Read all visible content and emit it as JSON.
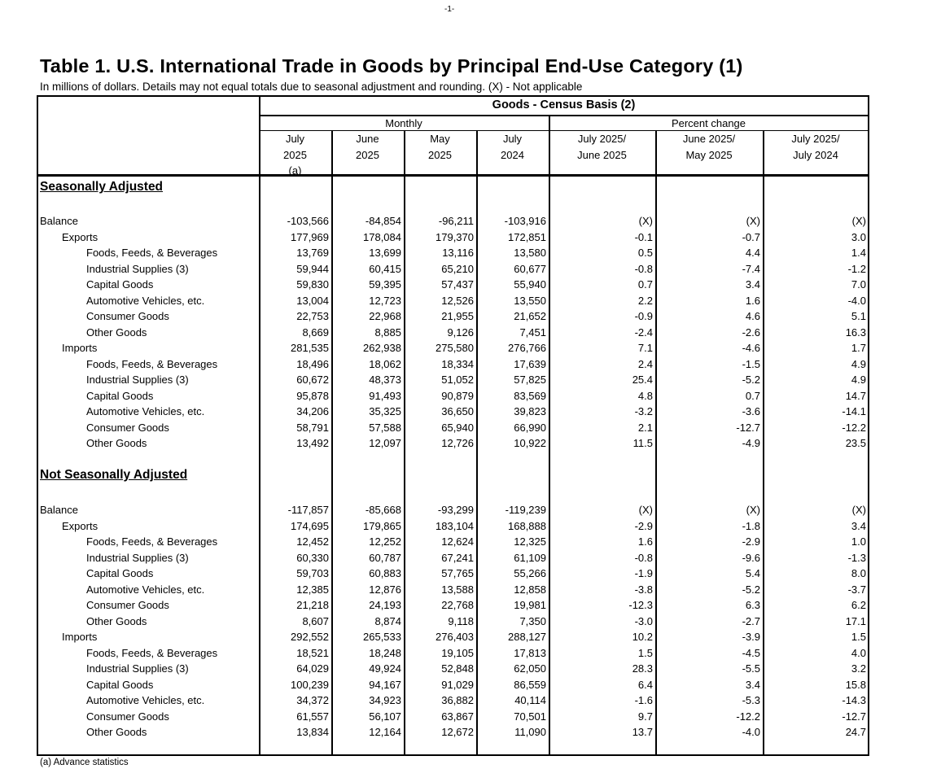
{
  "page_number": "-1-",
  "title": "Table 1. U.S. International Trade in Goods by Principal End-Use Category (1)",
  "subtitle": "In millions of dollars. Details may not equal totals due to seasonal adjustment and rounding. (X) - Not applicable",
  "header": {
    "group": "Goods - Census Basis (2)",
    "monthly": "Monthly",
    "percent_change": "Percent change",
    "columns": [
      [
        "July",
        "2025",
        "(a)"
      ],
      [
        "June",
        "2025"
      ],
      [
        "May",
        "2025"
      ],
      [
        "July",
        "2024"
      ],
      [
        "July 2025/",
        "June 2025"
      ],
      [
        "June 2025/",
        "May 2025"
      ],
      [
        "July 2025/",
        "July 2024"
      ]
    ]
  },
  "sections": [
    {
      "heading": "Seasonally Adjusted",
      "rows": [
        {
          "label": "Balance",
          "level": 0,
          "values": [
            "-103,566",
            "-84,854",
            "-96,211",
            "-103,916",
            "(X)",
            "(X)",
            "(X)"
          ]
        },
        {
          "label": "Exports",
          "level": 1,
          "values": [
            "177,969",
            "178,084",
            "179,370",
            "172,851",
            "-0.1",
            "-0.7",
            "3.0"
          ]
        },
        {
          "label": "Foods, Feeds, & Beverages",
          "level": 2,
          "values": [
            "13,769",
            "13,699",
            "13,116",
            "13,580",
            "0.5",
            "4.4",
            "1.4"
          ]
        },
        {
          "label": "Industrial Supplies (3)",
          "level": 2,
          "values": [
            "59,944",
            "60,415",
            "65,210",
            "60,677",
            "-0.8",
            "-7.4",
            "-1.2"
          ]
        },
        {
          "label": "Capital Goods",
          "level": 2,
          "values": [
            "59,830",
            "59,395",
            "57,437",
            "55,940",
            "0.7",
            "3.4",
            "7.0"
          ]
        },
        {
          "label": "Automotive Vehicles, etc.",
          "level": 2,
          "values": [
            "13,004",
            "12,723",
            "12,526",
            "13,550",
            "2.2",
            "1.6",
            "-4.0"
          ]
        },
        {
          "label": "Consumer Goods",
          "level": 2,
          "values": [
            "22,753",
            "22,968",
            "21,955",
            "21,652",
            "-0.9",
            "4.6",
            "5.1"
          ]
        },
        {
          "label": "Other Goods",
          "level": 2,
          "values": [
            "8,669",
            "8,885",
            "9,126",
            "7,451",
            "-2.4",
            "-2.6",
            "16.3"
          ]
        },
        {
          "label": "Imports",
          "level": 1,
          "values": [
            "281,535",
            "262,938",
            "275,580",
            "276,766",
            "7.1",
            "-4.6",
            "1.7"
          ]
        },
        {
          "label": "Foods, Feeds, & Beverages",
          "level": 2,
          "values": [
            "18,496",
            "18,062",
            "18,334",
            "17,639",
            "2.4",
            "-1.5",
            "4.9"
          ]
        },
        {
          "label": "Industrial Supplies (3)",
          "level": 2,
          "values": [
            "60,672",
            "48,373",
            "51,052",
            "57,825",
            "25.4",
            "-5.2",
            "4.9"
          ]
        },
        {
          "label": "Capital Goods",
          "level": 2,
          "values": [
            "95,878",
            "91,493",
            "90,879",
            "83,569",
            "4.8",
            "0.7",
            "14.7"
          ]
        },
        {
          "label": "Automotive Vehicles, etc.",
          "level": 2,
          "values": [
            "34,206",
            "35,325",
            "36,650",
            "39,823",
            "-3.2",
            "-3.6",
            "-14.1"
          ]
        },
        {
          "label": "Consumer Goods",
          "level": 2,
          "values": [
            "58,791",
            "57,588",
            "65,940",
            "66,990",
            "2.1",
            "-12.7",
            "-12.2"
          ]
        },
        {
          "label": "Other Goods",
          "level": 2,
          "values": [
            "13,492",
            "12,097",
            "12,726",
            "10,922",
            "11.5",
            "-4.9",
            "23.5"
          ]
        }
      ]
    },
    {
      "heading": "Not Seasonally Adjusted",
      "rows": [
        {
          "label": "Balance",
          "level": 0,
          "values": [
            "-117,857",
            "-85,668",
            "-93,299",
            "-119,239",
            "(X)",
            "(X)",
            "(X)"
          ]
        },
        {
          "label": "Exports",
          "level": 1,
          "values": [
            "174,695",
            "179,865",
            "183,104",
            "168,888",
            "-2.9",
            "-1.8",
            "3.4"
          ]
        },
        {
          "label": "Foods, Feeds, & Beverages",
          "level": 2,
          "values": [
            "12,452",
            "12,252",
            "12,624",
            "12,325",
            "1.6",
            "-2.9",
            "1.0"
          ]
        },
        {
          "label": "Industrial Supplies (3)",
          "level": 2,
          "values": [
            "60,330",
            "60,787",
            "67,241",
            "61,109",
            "-0.8",
            "-9.6",
            "-1.3"
          ]
        },
        {
          "label": "Capital Goods",
          "level": 2,
          "values": [
            "59,703",
            "60,883",
            "57,765",
            "55,266",
            "-1.9",
            "5.4",
            "8.0"
          ]
        },
        {
          "label": "Automotive Vehicles, etc.",
          "level": 2,
          "values": [
            "12,385",
            "12,876",
            "13,588",
            "12,858",
            "-3.8",
            "-5.2",
            "-3.7"
          ]
        },
        {
          "label": "Consumer Goods",
          "level": 2,
          "values": [
            "21,218",
            "24,193",
            "22,768",
            "19,981",
            "-12.3",
            "6.3",
            "6.2"
          ]
        },
        {
          "label": "Other Goods",
          "level": 2,
          "values": [
            "8,607",
            "8,874",
            "9,118",
            "7,350",
            "-3.0",
            "-2.7",
            "17.1"
          ]
        },
        {
          "label": "Imports",
          "level": 1,
          "values": [
            "292,552",
            "265,533",
            "276,403",
            "288,127",
            "10.2",
            "-3.9",
            "1.5"
          ]
        },
        {
          "label": "Foods, Feeds, & Beverages",
          "level": 2,
          "values": [
            "18,521",
            "18,248",
            "19,105",
            "17,813",
            "1.5",
            "-4.5",
            "4.0"
          ]
        },
        {
          "label": "Industrial Supplies (3)",
          "level": 2,
          "values": [
            "64,029",
            "49,924",
            "52,848",
            "62,050",
            "28.3",
            "-5.5",
            "3.2"
          ]
        },
        {
          "label": "Capital Goods",
          "level": 2,
          "values": [
            "100,239",
            "94,167",
            "91,029",
            "86,559",
            "6.4",
            "3.4",
            "15.8"
          ]
        },
        {
          "label": "Automotive Vehicles, etc.",
          "level": 2,
          "values": [
            "34,372",
            "34,923",
            "36,882",
            "40,114",
            "-1.6",
            "-5.3",
            "-14.3"
          ]
        },
        {
          "label": "Consumer Goods",
          "level": 2,
          "values": [
            "61,557",
            "56,107",
            "63,867",
            "70,501",
            "9.7",
            "-12.2",
            "-12.7"
          ]
        },
        {
          "label": "Other Goods",
          "level": 2,
          "values": [
            "13,834",
            "12,164",
            "12,672",
            "11,090",
            "13.7",
            "-4.0",
            "24.7"
          ]
        }
      ]
    }
  ],
  "footnote": "(a) Advance statistics"
}
